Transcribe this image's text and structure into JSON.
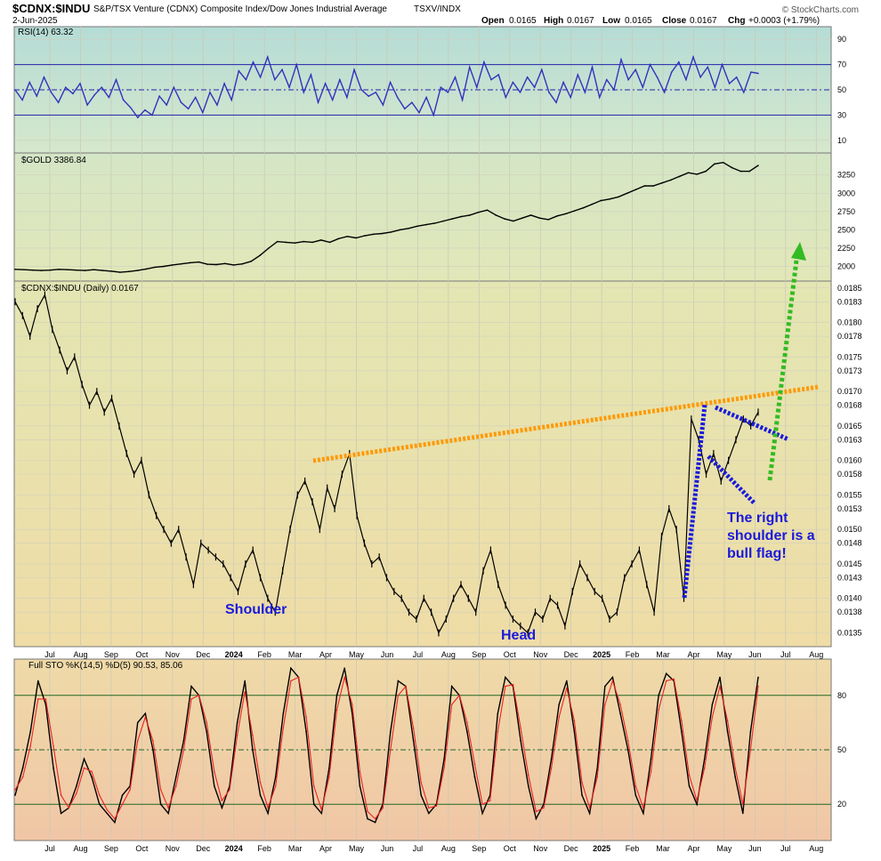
{
  "header": {
    "symbol": "$CDNX:$INDU",
    "description": "S&P/TSX Venture (CDNX) Composite Index/Dow Jones Industrial Average",
    "exchange": "TSXV/INDX",
    "date": "2-Jun-2025",
    "open_label": "Open",
    "open": "0.0165",
    "high_label": "High",
    "high": "0.0167",
    "low_label": "Low",
    "low": "0.0165",
    "close_label": "Close",
    "close": "0.0167",
    "chg_label": "Chg",
    "chg": "+0.0003 (+1.79%)",
    "watermark": "© StockCharts.com"
  },
  "colors": {
    "rsi_line": "#3333bb",
    "gold_line": "#000000",
    "price_bars": "#000000",
    "orange_line": "#ff9900",
    "blue_flag": "#1a1adb",
    "green_arrow": "#33bb22",
    "sto_k": "#000000",
    "sto_d": "#ee2222",
    "annotation_text": "#1a1adb"
  },
  "x_axis": {
    "months": [
      "Jul",
      "Aug",
      "Sep",
      "Oct",
      "Nov",
      "Dec",
      "2024",
      "Feb",
      "Mar",
      "Apr",
      "May",
      "Jun",
      "Jul",
      "Aug",
      "Sep",
      "Oct",
      "Nov",
      "Dec",
      "2025",
      "Feb",
      "Mar",
      "Apr",
      "May",
      "Jun",
      "Jul",
      "Aug"
    ],
    "bold_labels": [
      "2024",
      "2025"
    ]
  },
  "annotations": {
    "shoulder": "Shoulder",
    "head": "Head",
    "right_shoulder_1": "The right",
    "right_shoulder_2": "shoulder is a",
    "right_shoulder_3": "bull flag!"
  },
  "chart_data": [
    {
      "type": "line",
      "title": "RSI(14) 63.32",
      "yticks": [
        10,
        30,
        50,
        70,
        90
      ],
      "ylim": [
        0,
        100
      ],
      "reference_lines": [
        30,
        50,
        70
      ],
      "series": [
        {
          "name": "RSI(14)",
          "last": 63.32,
          "values": [
            50,
            42,
            56,
            45,
            60,
            48,
            40,
            52,
            47,
            55,
            38,
            46,
            52,
            44,
            58,
            42,
            36,
            28,
            34,
            30,
            45,
            38,
            52,
            40,
            35,
            44,
            32,
            48,
            38,
            55,
            42,
            65,
            58,
            72,
            60,
            76,
            58,
            66,
            52,
            70,
            48,
            62,
            40,
            55,
            42,
            58,
            44,
            66,
            50,
            45,
            48,
            38,
            56,
            44,
            35,
            40,
            32,
            44,
            30,
            52,
            48,
            60,
            42,
            68,
            52,
            72,
            58,
            62,
            44,
            56,
            48,
            60,
            52,
            66,
            48,
            40,
            56,
            44,
            62,
            48,
            68,
            44,
            58,
            50,
            74,
            58,
            66,
            52,
            70,
            60,
            48,
            64,
            72,
            58,
            76,
            60,
            68,
            52,
            70,
            55,
            60,
            48,
            64,
            63
          ]
        }
      ]
    },
    {
      "type": "line",
      "title": "$GOLD 3386.84",
      "yticks": [
        2000,
        2250,
        2500,
        2750,
        3000,
        3250
      ],
      "ylim": [
        1800,
        3550
      ],
      "series": [
        {
          "name": "$GOLD",
          "last": 3386.84,
          "values": [
            1960,
            1955,
            1950,
            1945,
            1950,
            1960,
            1955,
            1950,
            1945,
            1955,
            1945,
            1935,
            1920,
            1930,
            1945,
            1965,
            1990,
            2000,
            2020,
            2035,
            2050,
            2060,
            2030,
            2025,
            2040,
            2020,
            2035,
            2070,
            2150,
            2250,
            2340,
            2330,
            2320,
            2340,
            2330,
            2360,
            2330,
            2380,
            2410,
            2390,
            2420,
            2440,
            2450,
            2470,
            2500,
            2520,
            2550,
            2570,
            2590,
            2620,
            2650,
            2680,
            2700,
            2740,
            2770,
            2700,
            2650,
            2620,
            2660,
            2700,
            2660,
            2640,
            2690,
            2720,
            2760,
            2800,
            2850,
            2900,
            2920,
            2950,
            3000,
            3050,
            3100,
            3100,
            3140,
            3180,
            3230,
            3280,
            3260,
            3300,
            3400,
            3420,
            3350,
            3300,
            3300,
            3380
          ]
        }
      ]
    },
    {
      "type": "line",
      "title": "$CDNX:$INDU (Daily) 0.0167",
      "yticks": [
        0.0135,
        0.0138,
        0.014,
        0.0143,
        0.0145,
        0.0148,
        0.015,
        0.0153,
        0.0155,
        0.0158,
        0.016,
        0.0163,
        0.0165,
        0.0168,
        0.017,
        0.0173,
        0.0175,
        0.0178,
        0.018,
        0.0183,
        0.0185
      ],
      "ylim": [
        0.0133,
        0.0186
      ],
      "series": [
        {
          "name": "$CDNX:$INDU",
          "last": 0.0167,
          "values": [
            0.0183,
            0.0181,
            0.0178,
            0.0182,
            0.0184,
            0.0179,
            0.0176,
            0.0173,
            0.0175,
            0.0171,
            0.0168,
            0.017,
            0.0167,
            0.0169,
            0.0165,
            0.0161,
            0.0158,
            0.016,
            0.0155,
            0.0152,
            0.015,
            0.0148,
            0.015,
            0.0146,
            0.0142,
            0.0148,
            0.0147,
            0.0146,
            0.0145,
            0.0143,
            0.0141,
            0.0145,
            0.0147,
            0.0143,
            0.014,
            0.0138,
            0.0144,
            0.015,
            0.0155,
            0.0157,
            0.0154,
            0.015,
            0.0156,
            0.0153,
            0.0158,
            0.0161,
            0.0152,
            0.0148,
            0.0145,
            0.0146,
            0.0143,
            0.0141,
            0.014,
            0.0138,
            0.0137,
            0.014,
            0.0138,
            0.0135,
            0.0137,
            0.014,
            0.0142,
            0.014,
            0.0138,
            0.0144,
            0.0147,
            0.0142,
            0.0139,
            0.0137,
            0.0136,
            0.0135,
            0.0138,
            0.0137,
            0.014,
            0.0139,
            0.0136,
            0.0141,
            0.0145,
            0.0143,
            0.0141,
            0.014,
            0.0137,
            0.0138,
            0.0143,
            0.0145,
            0.0147,
            0.0142,
            0.0138,
            0.0149,
            0.0153,
            0.015,
            0.014,
            0.0166,
            0.0163,
            0.0158,
            0.0161,
            0.0157,
            0.016,
            0.0163,
            0.0166,
            0.0165,
            0.0167
          ]
        }
      ]
    },
    {
      "type": "line",
      "title": "Full STO %K(14,5) %D(5) 90.53, 85.06",
      "yticks": [
        20,
        50,
        80
      ],
      "ylim": [
        0,
        100
      ],
      "reference_lines": [
        20,
        50,
        80
      ],
      "series": [
        {
          "name": "%K(14,5)",
          "last": 90.53,
          "values": [
            25,
            40,
            60,
            88,
            75,
            40,
            15,
            18,
            30,
            45,
            35,
            20,
            15,
            10,
            25,
            30,
            65,
            70,
            50,
            20,
            15,
            35,
            55,
            85,
            80,
            60,
            30,
            18,
            30,
            65,
            88,
            50,
            25,
            15,
            35,
            70,
            95,
            90,
            60,
            20,
            15,
            40,
            80,
            95,
            70,
            30,
            12,
            10,
            20,
            60,
            88,
            85,
            55,
            25,
            15,
            20,
            45,
            85,
            80,
            60,
            35,
            15,
            25,
            70,
            90,
            85,
            55,
            30,
            12,
            20,
            45,
            75,
            88,
            60,
            25,
            15,
            40,
            85,
            90,
            70,
            50,
            25,
            15,
            45,
            80,
            92,
            88,
            60,
            30,
            20,
            45,
            75,
            90,
            60,
            35,
            15,
            60,
            90
          ]
        },
        {
          "name": "%D(5)",
          "last": 85.06,
          "values": [
            28,
            35,
            52,
            78,
            78,
            52,
            25,
            18,
            26,
            40,
            38,
            25,
            17,
            12,
            20,
            28,
            55,
            68,
            55,
            28,
            18,
            30,
            50,
            78,
            80,
            65,
            38,
            22,
            28,
            58,
            82,
            58,
            32,
            18,
            30,
            62,
            88,
            90,
            68,
            30,
            17,
            35,
            72,
            90,
            75,
            38,
            16,
            12,
            18,
            50,
            80,
            85,
            62,
            32,
            18,
            19,
            40,
            75,
            80,
            65,
            42,
            20,
            22,
            60,
            85,
            86,
            62,
            36,
            16,
            18,
            40,
            68,
            84,
            66,
            32,
            18,
            35,
            75,
            88,
            75,
            55,
            30,
            18,
            38,
            72,
            88,
            89,
            66,
            36,
            22,
            40,
            68,
            85,
            66,
            40,
            20,
            50,
            85
          ]
        }
      ]
    }
  ]
}
